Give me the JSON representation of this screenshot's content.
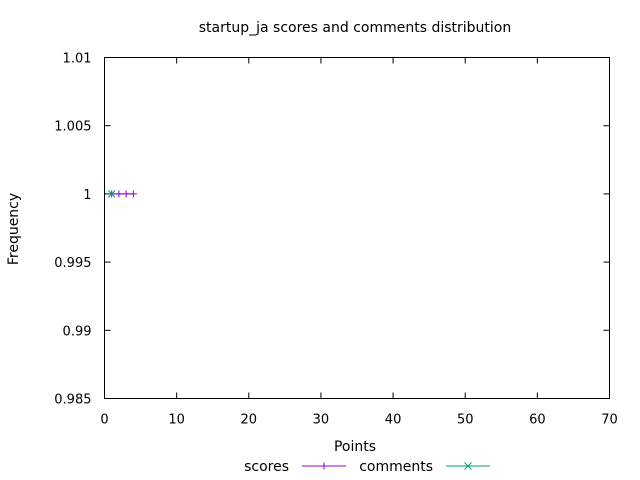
{
  "chart_data": {
    "type": "line",
    "title": "startup_ja scores and comments distribution",
    "xlabel": "Points",
    "ylabel": "Frequency",
    "xlim": [
      0,
      70
    ],
    "ylim": [
      0.985,
      1.01
    ],
    "x_ticks": [
      "0",
      "10",
      "20",
      "30",
      "40",
      "50",
      "60",
      "70"
    ],
    "y_ticks": [
      "0.985",
      "0.99",
      "0.995",
      "1",
      "1.005",
      "1.01"
    ],
    "grid": false,
    "legend_position": "bottom-center",
    "series": [
      {
        "name": "scores",
        "color": "#9400d3",
        "marker": "plus",
        "points": [
          [
            1,
            1
          ],
          [
            2,
            1
          ],
          [
            3,
            1
          ],
          [
            4,
            1
          ]
        ]
      },
      {
        "name": "comments",
        "color": "#009e73",
        "marker": "cross",
        "points": [
          [
            1,
            1
          ]
        ]
      }
    ]
  }
}
